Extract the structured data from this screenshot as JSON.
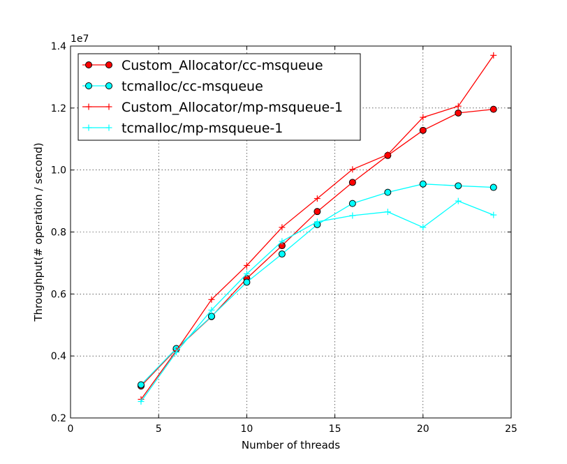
{
  "chart_data": {
    "type": "line",
    "xlabel": "Number of threads",
    "ylabel": "Throughput(# operation / second)",
    "offset_text": "1e7",
    "xlim": [
      0,
      25
    ],
    "ylim": [
      0.2,
      1.4
    ],
    "y_scale_factor": 10000000,
    "xticks": [
      0,
      5,
      10,
      15,
      20,
      25
    ],
    "xtick_labels": [
      "0",
      "5",
      "10",
      "15",
      "20",
      "25"
    ],
    "yticks": [
      0.2,
      0.4,
      0.6,
      0.8,
      1.0,
      1.2,
      1.4
    ],
    "ytick_labels": [
      "0.2",
      "0.4",
      "0.6",
      "0.8",
      "1.0",
      "1.2",
      "1.4"
    ],
    "grid": true,
    "legend_position": "top-left",
    "x": [
      4,
      6,
      8,
      10,
      12,
      14,
      16,
      18,
      20,
      22,
      24
    ],
    "series": [
      {
        "name": "Custom_Allocator/cc-msqueue",
        "color": "#ff0000",
        "marker": "circle",
        "values": [
          0.303,
          0.422,
          0.527,
          0.65,
          0.756,
          0.866,
          0.96,
          1.047,
          1.128,
          1.184,
          1.196
        ]
      },
      {
        "name": "tcmalloc/cc-msqueue",
        "color": "#00ffff",
        "marker": "circle",
        "values": [
          0.307,
          0.424,
          0.528,
          0.638,
          0.729,
          0.824,
          0.892,
          0.928,
          0.955,
          0.949,
          0.944
        ]
      },
      {
        "name": "Custom_Allocator/mp-msqueue-1",
        "color": "#ff0000",
        "marker": "plus",
        "values": [
          0.26,
          0.417,
          0.582,
          0.692,
          0.815,
          0.908,
          1.002,
          1.05,
          1.17,
          1.206,
          1.37
        ]
      },
      {
        "name": "tcmalloc/mp-msqueue-1",
        "color": "#00ffff",
        "marker": "plus",
        "values": [
          0.253,
          0.412,
          0.548,
          0.665,
          0.77,
          0.833,
          0.853,
          0.865,
          0.815,
          0.9,
          0.855
        ]
      }
    ]
  }
}
